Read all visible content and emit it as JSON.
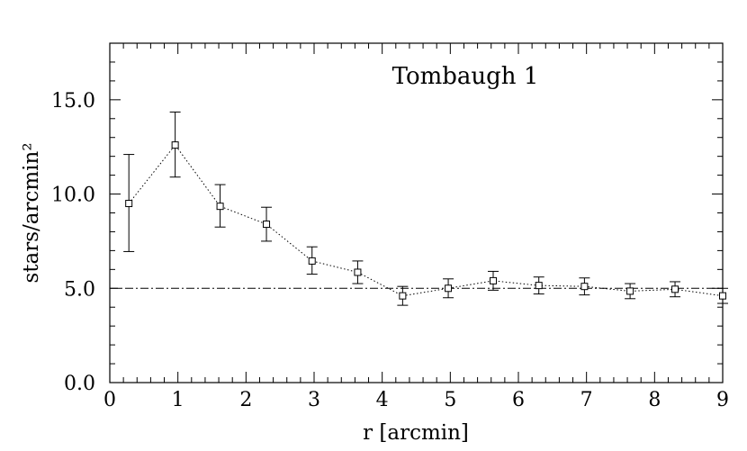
{
  "chart_data": {
    "type": "scatter",
    "title": "Tombaugh 1",
    "xlabel": "r [arcmin]",
    "ylabel": "stars/arcmin²",
    "xlim": [
      0,
      9
    ],
    "ylim": [
      0,
      18
    ],
    "x_ticks": [
      "0",
      "1",
      "2",
      "3",
      "4",
      "5",
      "6",
      "7",
      "8",
      "9"
    ],
    "y_ticks": [
      "0.0",
      "5.0",
      "10.0",
      "15.0"
    ],
    "background_level": 5.0,
    "grid": false,
    "series": [
      {
        "marker": "open-square",
        "line_style": "dotted",
        "x": [
          0.28,
          0.96,
          1.62,
          2.3,
          2.97,
          3.64,
          4.3,
          4.97,
          5.63,
          6.3,
          6.97,
          7.64,
          8.3,
          9.0
        ],
        "y": [
          9.5,
          12.6,
          9.35,
          8.4,
          6.45,
          5.85,
          4.6,
          5.0,
          5.4,
          5.15,
          5.1,
          4.85,
          4.95,
          4.6
        ],
        "err_low": [
          2.55,
          1.7,
          1.1,
          0.9,
          0.7,
          0.6,
          0.5,
          0.5,
          0.5,
          0.45,
          0.45,
          0.4,
          0.4,
          0.4
        ],
        "err_high": [
          2.6,
          1.75,
          1.15,
          0.9,
          0.75,
          0.6,
          0.5,
          0.5,
          0.5,
          0.45,
          0.45,
          0.4,
          0.4,
          0.4
        ]
      }
    ]
  }
}
